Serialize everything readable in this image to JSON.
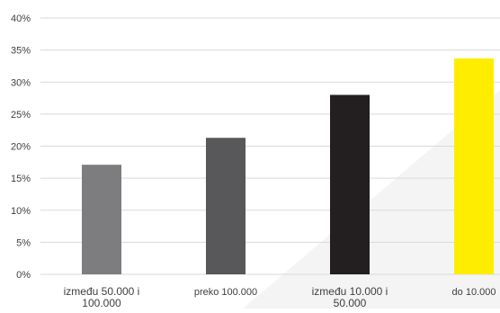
{
  "chart_data": {
    "type": "bar",
    "categories": [
      [
        "između 50.000 i",
        "100.000"
      ],
      [
        "preko 100.000"
      ],
      [
        "između 10.000 i",
        "50.000"
      ],
      [
        "do 10.000"
      ]
    ],
    "values": [
      17.1,
      21.3,
      28.0,
      33.7
    ],
    "ylim": [
      0,
      40
    ],
    "yticks": [
      "0%",
      "5%",
      "10%",
      "15%",
      "20%",
      "25%",
      "30%",
      "35%",
      "40%"
    ],
    "ytick_values": [
      0,
      5,
      10,
      15,
      20,
      25,
      30,
      35,
      40
    ],
    "grid": true,
    "title": "",
    "xlabel": "",
    "ylabel": ""
  },
  "colors": {
    "bars": [
      "#7d7d80",
      "#58585a",
      "#231f20",
      "#ffed00"
    ],
    "grid": "#d9d9d9",
    "axis_text": "#404040",
    "background_shade": "#f3f3f3"
  }
}
